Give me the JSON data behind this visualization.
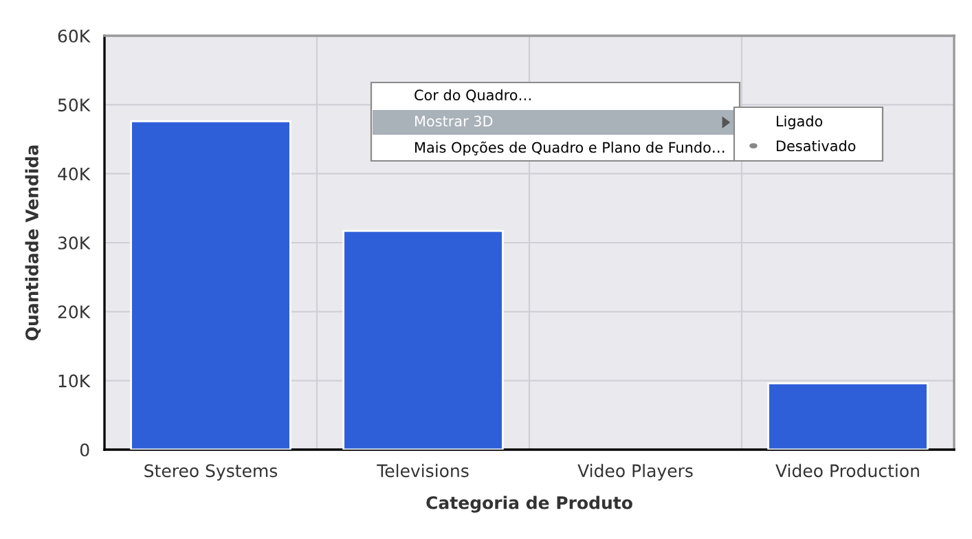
{
  "chart_data": {
    "type": "bar",
    "xlabel": "Categoria de Produto",
    "ylabel": "Quantidade Vendida",
    "categories": [
      "Stereo Systems",
      "Televisions",
      "Video Players",
      "Video Production"
    ],
    "values": [
      47600,
      31700,
      null,
      9600
    ],
    "color": "#2f5fd8",
    "ylim": [
      0,
      60000
    ],
    "yticks": [
      0,
      {
        "value": 10000,
        "label": "10K"
      },
      {
        "value": 20000,
        "label": "20K"
      },
      {
        "value": 30000,
        "label": "30K"
      },
      {
        "value": 40000,
        "label": "40K"
      },
      {
        "value": 50000,
        "label": "50K"
      },
      {
        "value": 60000,
        "label": "60K"
      }
    ],
    "grid": true,
    "legend": false,
    "annotations": [
      "Cor do Quadro…",
      "Mostrar 3D",
      "Mais Opções de Quadro e Plano de Fundo…",
      "Ligado",
      "Desativado"
    ]
  }
}
